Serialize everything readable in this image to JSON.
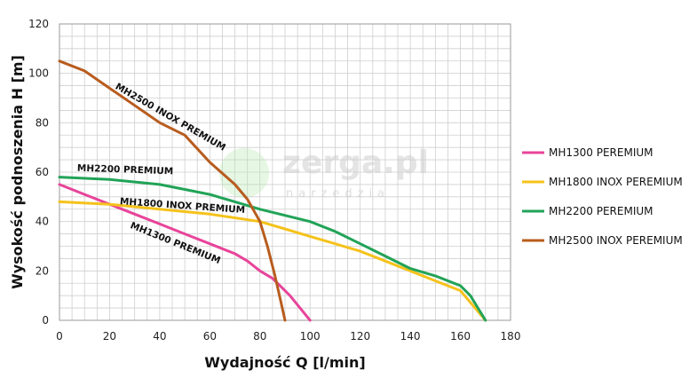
{
  "watermark": {
    "brand": "zerga.pl",
    "tagline": "narzedzia"
  },
  "chart_data": {
    "type": "line",
    "xlabel": "Wydajność Q [l/min]",
    "ylabel": "Wysokość podnoszenia H [m]",
    "xlim": [
      0,
      180
    ],
    "ylim": [
      0,
      120
    ],
    "xticks": [
      0,
      20,
      40,
      60,
      80,
      100,
      120,
      140,
      160,
      180
    ],
    "yticks": [
      0,
      20,
      40,
      60,
      80,
      100,
      120
    ],
    "grid": true,
    "legend_position": "right",
    "series": [
      {
        "name": "MH1300 PEREMIUM",
        "curve_label": "MH1300 PREMIUM",
        "color": "#e8449a",
        "points": [
          [
            0,
            55
          ],
          [
            10,
            51
          ],
          [
            20,
            47
          ],
          [
            30,
            43
          ],
          [
            40,
            39
          ],
          [
            50,
            35
          ],
          [
            60,
            31
          ],
          [
            70,
            27
          ],
          [
            75,
            24
          ],
          [
            80,
            20
          ],
          [
            85,
            17
          ],
          [
            88,
            14
          ],
          [
            92,
            10
          ],
          [
            96,
            5
          ],
          [
            100,
            0
          ]
        ]
      },
      {
        "name": "MH1800 INOX PEREMIUM",
        "curve_label": "MH1800 INOX PREMIUM",
        "color": "#f5c21b",
        "points": [
          [
            0,
            48
          ],
          [
            20,
            47
          ],
          [
            40,
            45
          ],
          [
            60,
            43
          ],
          [
            80,
            40
          ],
          [
            90,
            37
          ],
          [
            100,
            34
          ],
          [
            110,
            31
          ],
          [
            120,
            28
          ],
          [
            130,
            24
          ],
          [
            140,
            20
          ],
          [
            150,
            16
          ],
          [
            160,
            12
          ],
          [
            165,
            6
          ],
          [
            170,
            0
          ]
        ]
      },
      {
        "name": "MH2200 PEREMIUM",
        "curve_label": "MH2200 PREMIUM",
        "color": "#21a357",
        "points": [
          [
            0,
            58
          ],
          [
            20,
            57
          ],
          [
            40,
            55
          ],
          [
            60,
            51
          ],
          [
            80,
            45
          ],
          [
            100,
            40
          ],
          [
            110,
            36
          ],
          [
            120,
            31
          ],
          [
            130,
            26
          ],
          [
            140,
            21
          ],
          [
            150,
            18
          ],
          [
            160,
            14
          ],
          [
            164,
            10
          ],
          [
            167,
            5
          ],
          [
            170,
            0
          ]
        ]
      },
      {
        "name": "MH2500 INOX PEREMIUM",
        "curve_label": "MH2500 INOX PREMIUM",
        "color": "#b85c1e",
        "points": [
          [
            0,
            105
          ],
          [
            10,
            101
          ],
          [
            20,
            94
          ],
          [
            30,
            87
          ],
          [
            40,
            80
          ],
          [
            50,
            75
          ],
          [
            60,
            64
          ],
          [
            70,
            55
          ],
          [
            75,
            49
          ],
          [
            80,
            40
          ],
          [
            83,
            30
          ],
          [
            86,
            18
          ],
          [
            88,
            9
          ],
          [
            90,
            0
          ]
        ]
      }
    ]
  }
}
